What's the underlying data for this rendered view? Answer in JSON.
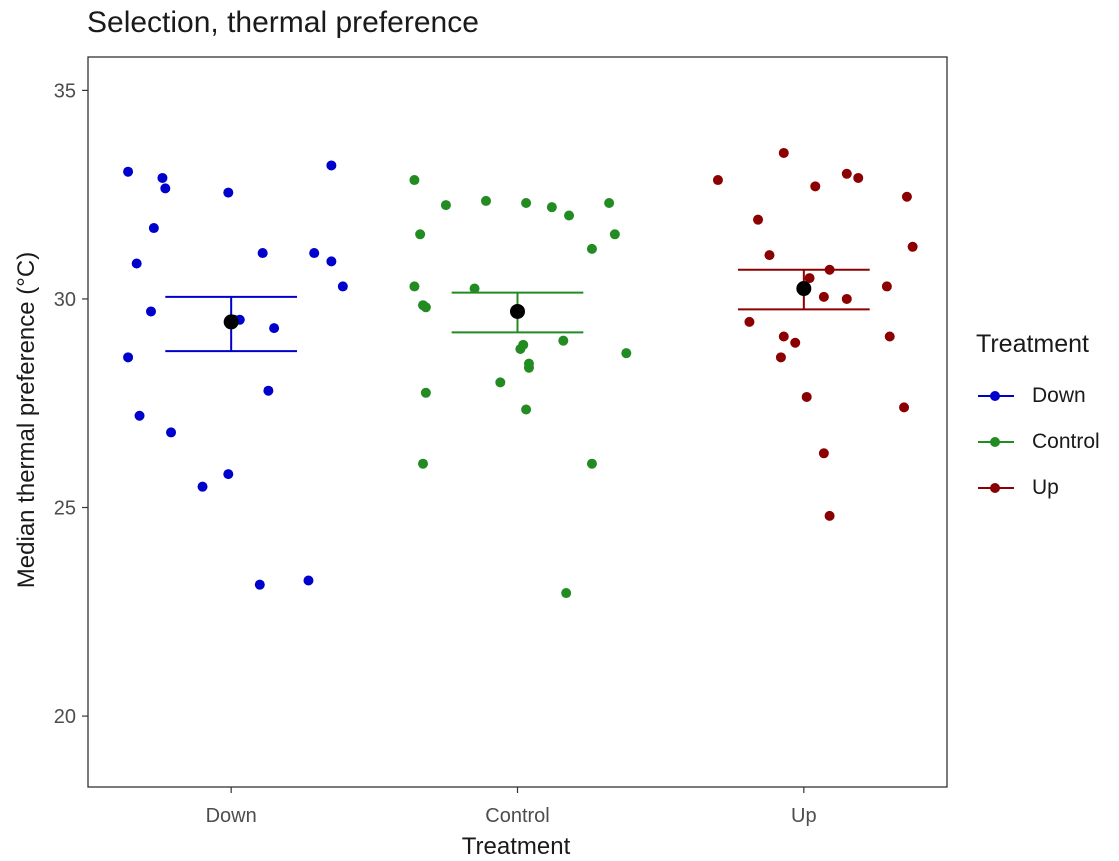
{
  "chart_data": {
    "type": "scatter",
    "title": "Selection, thermal preference",
    "xlabel": "Treatment",
    "ylabel": "Median thermal preference (°C)",
    "categories": [
      "Down",
      "Control",
      "Up"
    ],
    "ylim": [
      18.3,
      35.8
    ],
    "yticks": [
      20,
      25,
      30,
      35
    ],
    "grid": false,
    "legend": {
      "title": "Treatment",
      "position": "right",
      "entries": [
        "Down",
        "Control",
        "Up"
      ]
    },
    "colors": {
      "Down": "#0000cd",
      "Control": "#228b22",
      "Up": "#8b0000",
      "mean": "#000000"
    },
    "series": [
      {
        "name": "Down",
        "category": "Down",
        "color": "#0000cd",
        "points": [
          {
            "x": -0.36,
            "y": 28.6
          },
          {
            "x": -0.36,
            "y": 33.05
          },
          {
            "x": -0.33,
            "y": 30.85
          },
          {
            "x": -0.32,
            "y": 27.2
          },
          {
            "x": -0.28,
            "y": 29.7
          },
          {
            "x": -0.27,
            "y": 31.7
          },
          {
            "x": -0.24,
            "y": 32.9
          },
          {
            "x": -0.23,
            "y": 32.65
          },
          {
            "x": -0.21,
            "y": 26.8
          },
          {
            "x": -0.1,
            "y": 25.5
          },
          {
            "x": -0.01,
            "y": 32.55
          },
          {
            "x": -0.01,
            "y": 25.8
          },
          {
            "x": 0.01,
            "y": 29.5
          },
          {
            "x": 0.03,
            "y": 29.5
          },
          {
            "x": 0.1,
            "y": 23.15
          },
          {
            "x": 0.11,
            "y": 31.1
          },
          {
            "x": 0.13,
            "y": 27.8
          },
          {
            "x": 0.15,
            "y": 29.3
          },
          {
            "x": 0.27,
            "y": 23.25
          },
          {
            "x": 0.29,
            "y": 31.1
          },
          {
            "x": 0.35,
            "y": 33.2
          },
          {
            "x": 0.35,
            "y": 30.9
          },
          {
            "x": 0.39,
            "y": 30.3
          }
        ],
        "mean": 29.45,
        "ci": [
          28.75,
          30.05
        ]
      },
      {
        "name": "Control",
        "category": "Control",
        "color": "#228b22",
        "points": [
          {
            "x": -0.36,
            "y": 30.3
          },
          {
            "x": -0.36,
            "y": 32.85
          },
          {
            "x": -0.34,
            "y": 31.55
          },
          {
            "x": -0.33,
            "y": 29.85
          },
          {
            "x": -0.32,
            "y": 29.8
          },
          {
            "x": -0.32,
            "y": 27.75
          },
          {
            "x": -0.33,
            "y": 26.05
          },
          {
            "x": -0.25,
            "y": 32.25
          },
          {
            "x": -0.15,
            "y": 30.25
          },
          {
            "x": -0.11,
            "y": 32.35
          },
          {
            "x": -0.06,
            "y": 28.0
          },
          {
            "x": 0.01,
            "y": 28.8
          },
          {
            "x": 0.02,
            "y": 28.9
          },
          {
            "x": 0.03,
            "y": 27.35
          },
          {
            "x": 0.03,
            "y": 32.3
          },
          {
            "x": 0.04,
            "y": 28.45
          },
          {
            "x": 0.04,
            "y": 28.35
          },
          {
            "x": 0.12,
            "y": 32.2
          },
          {
            "x": 0.16,
            "y": 29.0
          },
          {
            "x": 0.17,
            "y": 22.95
          },
          {
            "x": 0.18,
            "y": 32.0
          },
          {
            "x": 0.26,
            "y": 31.2
          },
          {
            "x": 0.26,
            "y": 26.05
          },
          {
            "x": 0.32,
            "y": 32.3
          },
          {
            "x": 0.34,
            "y": 31.55
          },
          {
            "x": 0.38,
            "y": 28.7
          }
        ],
        "mean": 29.7,
        "ci": [
          29.2,
          30.15
        ]
      },
      {
        "name": "Up",
        "category": "Up",
        "color": "#8b0000",
        "points": [
          {
            "x": -0.3,
            "y": 32.85
          },
          {
            "x": -0.19,
            "y": 29.45
          },
          {
            "x": -0.16,
            "y": 31.9
          },
          {
            "x": -0.12,
            "y": 31.05
          },
          {
            "x": -0.08,
            "y": 28.6
          },
          {
            "x": -0.07,
            "y": 29.1
          },
          {
            "x": -0.07,
            "y": 33.5
          },
          {
            "x": -0.03,
            "y": 28.95
          },
          {
            "x": 0.01,
            "y": 27.65
          },
          {
            "x": 0.02,
            "y": 30.5
          },
          {
            "x": 0.04,
            "y": 32.7
          },
          {
            "x": 0.07,
            "y": 26.3
          },
          {
            "x": 0.07,
            "y": 30.05
          },
          {
            "x": 0.09,
            "y": 30.7
          },
          {
            "x": 0.09,
            "y": 24.8
          },
          {
            "x": 0.15,
            "y": 30.0
          },
          {
            "x": 0.15,
            "y": 33.0
          },
          {
            "x": 0.19,
            "y": 32.9
          },
          {
            "x": 0.29,
            "y": 30.3
          },
          {
            "x": 0.3,
            "y": 29.1
          },
          {
            "x": 0.35,
            "y": 27.4
          },
          {
            "x": 0.36,
            "y": 32.45
          },
          {
            "x": 0.38,
            "y": 31.25
          }
        ],
        "mean": 30.25,
        "ci": [
          29.75,
          30.7
        ]
      }
    ]
  }
}
